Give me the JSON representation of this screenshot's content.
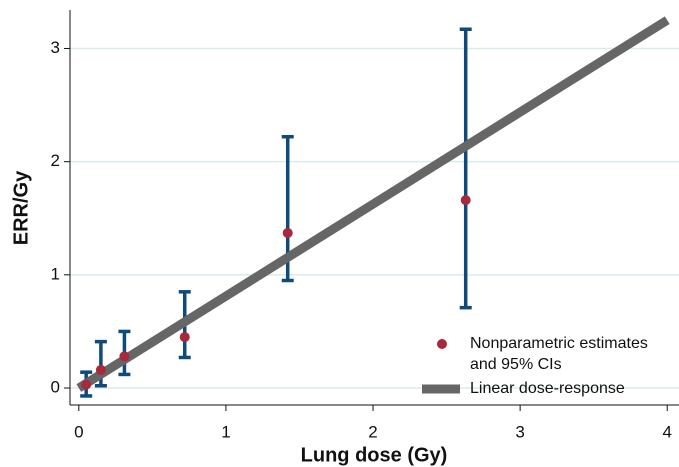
{
  "chart_data": {
    "type": "scatter",
    "x_label": "Lung dose (Gy)",
    "y_label": "ERR/Gy",
    "xlim": [
      -0.06,
      4.08
    ],
    "ylim": [
      -0.15,
      3.34
    ],
    "xticks": [
      0,
      1,
      2,
      3,
      4
    ],
    "yticks": [
      0,
      1,
      2,
      3
    ],
    "grid": true,
    "legend_position": "lower right",
    "series": [
      {
        "name": "Nonparametric estimates and 95% CIs",
        "color": "#a8283c",
        "error_color": "#0f4a7c",
        "x": [
          0.05,
          0.15,
          0.31,
          0.72,
          1.42,
          2.63
        ],
        "values": [
          0.03,
          0.16,
          0.28,
          0.45,
          1.37,
          1.66
        ],
        "lower": [
          -0.07,
          0.02,
          0.12,
          0.27,
          0.95,
          0.71
        ],
        "upper": [
          0.14,
          0.41,
          0.5,
          0.85,
          2.22,
          3.17
        ]
      },
      {
        "name": "Linear dose-response",
        "color": "#666666",
        "type": "line",
        "x": [
          0,
          4
        ],
        "values": [
          0,
          3.25
        ]
      }
    ]
  }
}
